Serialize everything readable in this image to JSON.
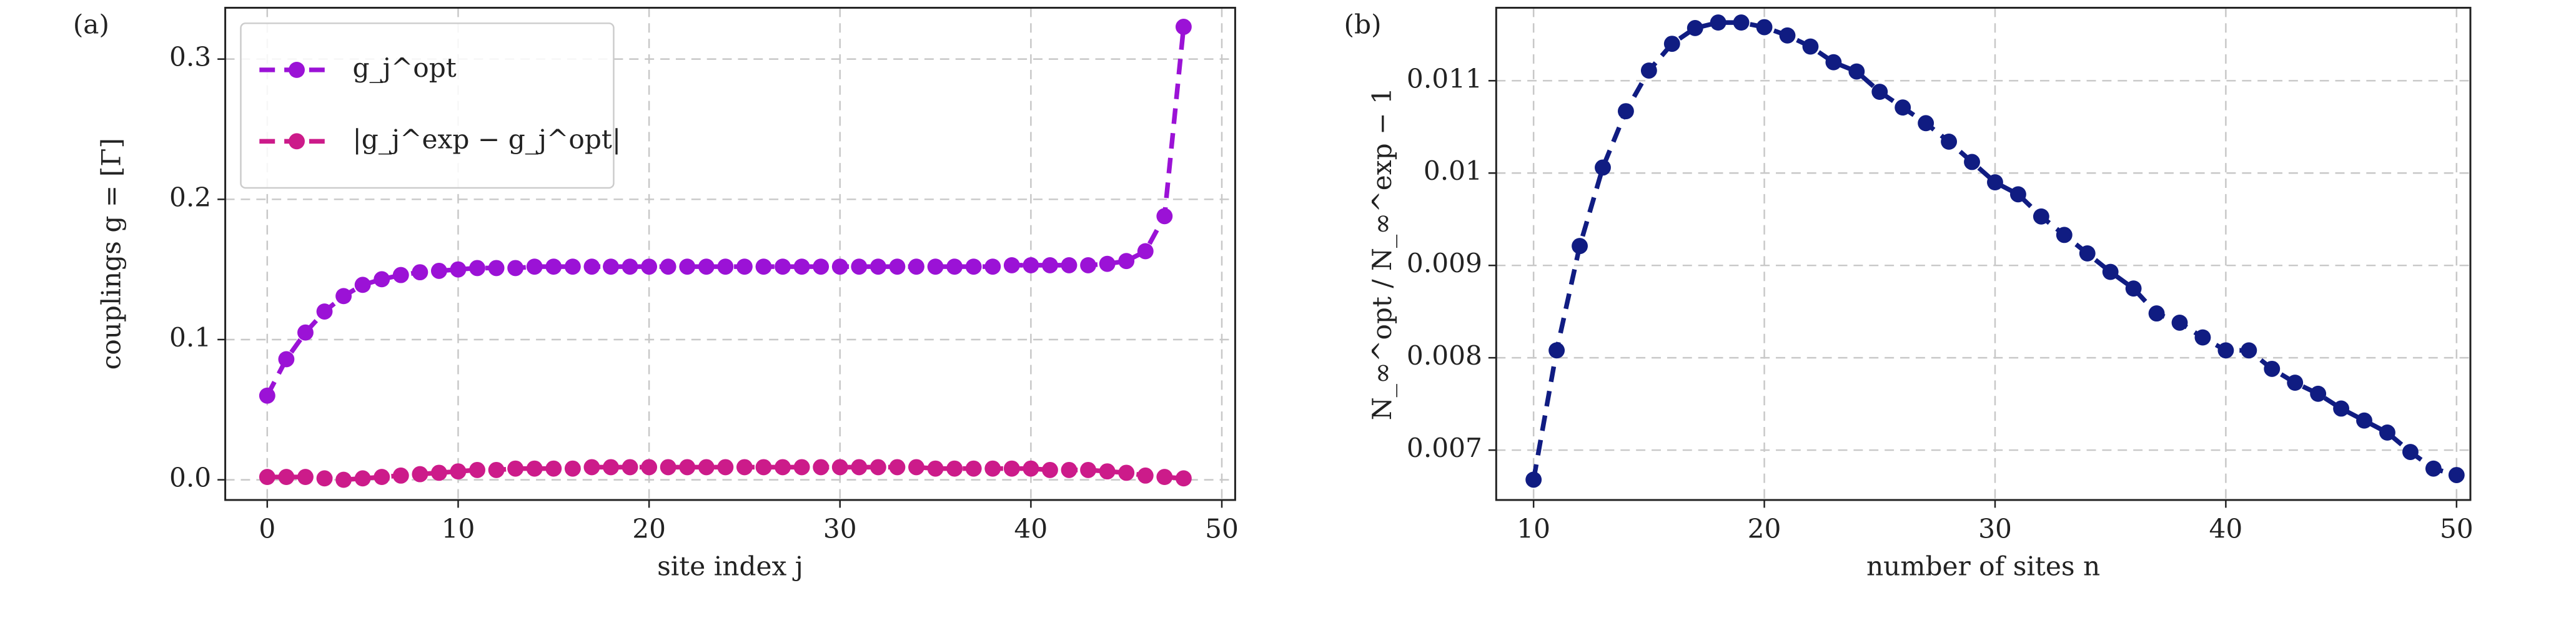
{
  "chart_data": [
    {
      "type": "line",
      "panel_label": "(a)",
      "xlabel": "site index j",
      "ylabel": "couplings g = [Γ]",
      "x": [
        0,
        1,
        2,
        3,
        4,
        5,
        6,
        7,
        8,
        9,
        10,
        11,
        12,
        13,
        14,
        15,
        16,
        17,
        18,
        19,
        20,
        21,
        22,
        23,
        24,
        25,
        26,
        27,
        28,
        29,
        30,
        31,
        32,
        33,
        34,
        35,
        36,
        37,
        38,
        39,
        40,
        41,
        42,
        43,
        44,
        45,
        46,
        47,
        48
      ],
      "series": [
        {
          "name": "g_j^opt",
          "color": "#9b12d6",
          "values": [
            0.06,
            0.086,
            0.105,
            0.12,
            0.131,
            0.139,
            0.143,
            0.146,
            0.148,
            0.149,
            0.15,
            0.151,
            0.151,
            0.151,
            0.152,
            0.152,
            0.152,
            0.152,
            0.152,
            0.152,
            0.152,
            0.152,
            0.152,
            0.152,
            0.152,
            0.152,
            0.152,
            0.152,
            0.152,
            0.152,
            0.152,
            0.152,
            0.152,
            0.152,
            0.152,
            0.152,
            0.152,
            0.152,
            0.152,
            0.153,
            0.153,
            0.153,
            0.153,
            0.153,
            0.154,
            0.156,
            0.163,
            0.188,
            0.323
          ]
        },
        {
          "name": "|g_j^exp − g_j^opt|",
          "color": "#cc1b8a",
          "values": [
            0.002,
            0.002,
            0.002,
            0.001,
            0.0,
            0.001,
            0.002,
            0.003,
            0.004,
            0.005,
            0.006,
            0.007,
            0.007,
            0.008,
            0.008,
            0.008,
            0.008,
            0.009,
            0.009,
            0.009,
            0.009,
            0.009,
            0.009,
            0.009,
            0.009,
            0.009,
            0.009,
            0.009,
            0.009,
            0.009,
            0.009,
            0.009,
            0.009,
            0.009,
            0.009,
            0.008,
            0.008,
            0.008,
            0.008,
            0.008,
            0.008,
            0.007,
            0.007,
            0.007,
            0.006,
            0.005,
            0.003,
            0.002,
            0.001
          ]
        }
      ],
      "xlim": [
        -2.2,
        50.7
      ],
      "xticks": [
        0,
        10,
        20,
        30,
        40,
        50
      ],
      "ylim": [
        -0.0144,
        0.3366
      ],
      "yticks": [
        {
          "value": 0,
          "label": "0.0"
        },
        0.1,
        0.2,
        0.3
      ],
      "grid": true,
      "legend": "upper left"
    },
    {
      "type": "line",
      "panel_label": "(b)",
      "xlabel": "number of sites n",
      "ylabel": "N_∞^opt / N_∞^exp − 1",
      "x": [
        10,
        11,
        12,
        13,
        14,
        15,
        16,
        17,
        18,
        19,
        20,
        21,
        22,
        23,
        24,
        25,
        26,
        27,
        28,
        29,
        30,
        31,
        32,
        33,
        34,
        35,
        36,
        37,
        38,
        39,
        40,
        41,
        42,
        43,
        44,
        45,
        46,
        47,
        48,
        49,
        50
      ],
      "series": [
        {
          "name": null,
          "color": "#101c82",
          "values": [
            0.00668,
            0.00808,
            0.00921,
            0.01006,
            0.01067,
            0.01111,
            0.0114,
            0.01157,
            0.01163,
            0.01163,
            0.01158,
            0.01149,
            0.01137,
            0.0112,
            0.0111,
            0.01088,
            0.01071,
            0.01054,
            0.01034,
            0.01012,
            0.0099,
            0.00977,
            0.00953,
            0.00933,
            0.00913,
            0.00893,
            0.00875,
            0.00848,
            0.00838,
            0.00822,
            0.00808,
            0.00808,
            0.00788,
            0.00773,
            0.00761,
            0.00745,
            0.00732,
            0.00719,
            0.00698,
            0.0068,
            0.00673
          ]
        }
      ],
      "xlim": [
        8.38,
        50.6
      ],
      "xticks": [
        10,
        20,
        30,
        40,
        50
      ],
      "ylim": [
        0.00646,
        0.01179
      ],
      "yticks": [
        0.007,
        0.008,
        0.009,
        0.01,
        0.011
      ],
      "grid": true
    }
  ]
}
